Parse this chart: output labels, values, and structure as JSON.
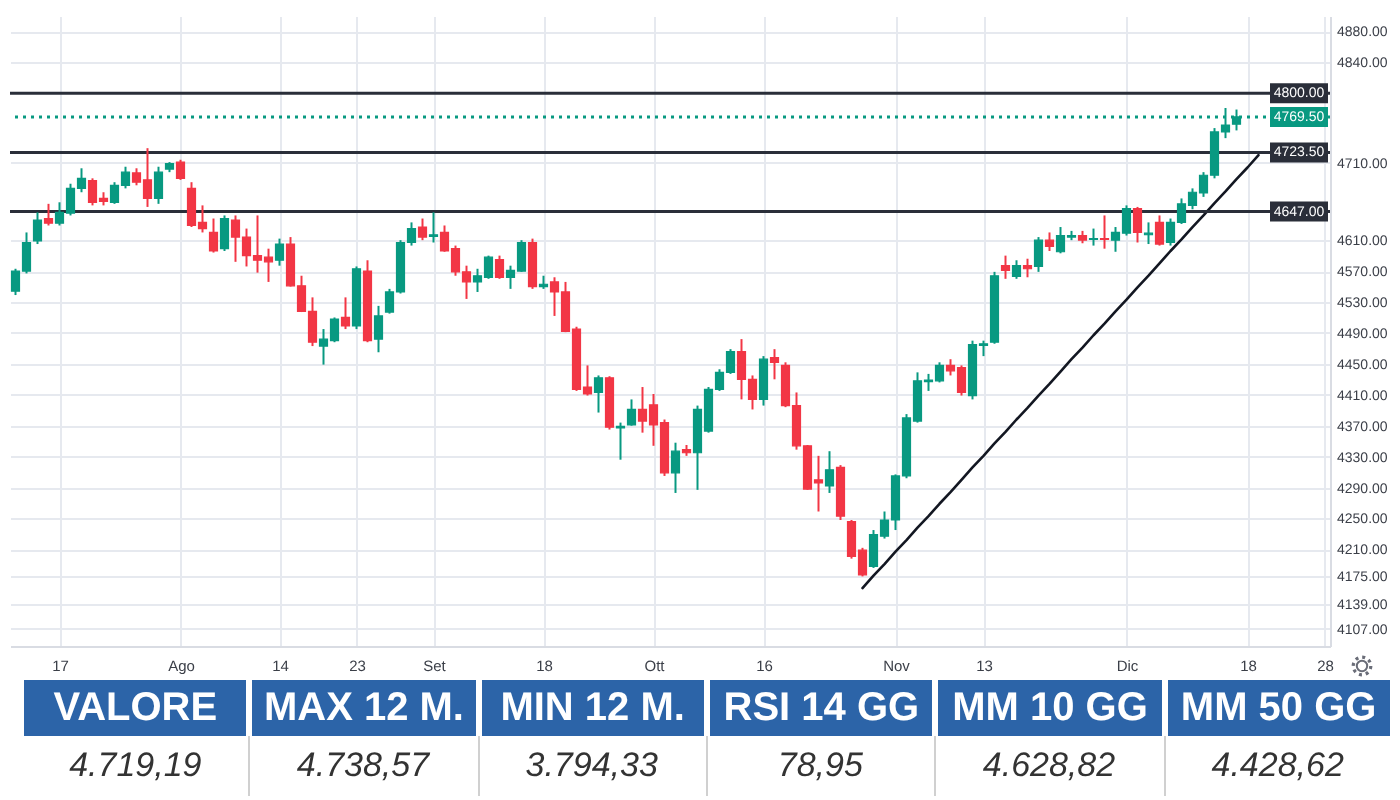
{
  "chart_data": [
    {
      "type": "candlestick",
      "categories": [
        null,
        null,
        null,
        null,
        "17",
        null,
        null,
        null,
        null,
        null,
        null,
        null,
        null,
        null,
        null,
        "Ago",
        null,
        null,
        null,
        null,
        null,
        null,
        null,
        null,
        "14",
        null,
        null,
        null,
        null,
        null,
        null,
        "23",
        null,
        null,
        null,
        null,
        null,
        null,
        "Set",
        null,
        null,
        null,
        null,
        null,
        null,
        null,
        null,
        null,
        "18",
        null,
        null,
        null,
        null,
        null,
        null,
        null,
        null,
        null,
        "Ott",
        null,
        null,
        null,
        null,
        null,
        null,
        null,
        null,
        null,
        "16",
        null,
        null,
        null,
        null,
        null,
        null,
        null,
        null,
        null,
        null,
        null,
        "Nov",
        null,
        null,
        null,
        null,
        null,
        null,
        null,
        "13",
        null,
        null,
        null,
        null,
        null,
        null,
        null,
        null,
        null,
        null,
        null,
        null,
        "Dic",
        null,
        null,
        null,
        null,
        null,
        null,
        null,
        null,
        null,
        null,
        "18",
        null,
        null,
        null,
        null,
        null,
        null,
        "28"
      ],
      "ohlc": [
        [
          4544,
          4573,
          4539,
          4570
        ],
        [
          4570,
          4620,
          4567,
          4607
        ],
        [
          4609,
          4646,
          4605,
          4636
        ],
        [
          4638,
          4657,
          4629,
          4632
        ],
        [
          4632,
          4659,
          4629,
          4646
        ],
        [
          4645,
          4683,
          4642,
          4677
        ],
        [
          4677,
          4703,
          4672,
          4690
        ],
        [
          4687,
          4690,
          4655,
          4659
        ],
        [
          4664,
          4672,
          4655,
          4660
        ],
        [
          4659,
          4685,
          4657,
          4681
        ],
        [
          4681,
          4705,
          4677,
          4698
        ],
        [
          4697,
          4703,
          4681,
          4685
        ],
        [
          4688,
          4729,
          4653,
          4664
        ],
        [
          4664,
          4705,
          4657,
          4698
        ],
        [
          4702,
          4711,
          4698,
          4709
        ],
        [
          4711,
          4714,
          4688,
          4690
        ],
        [
          4677,
          4685,
          4627,
          4629
        ],
        [
          4633,
          4655,
          4620,
          4625
        ],
        [
          4620,
          4638,
          4594,
          4596
        ],
        [
          4599,
          4642,
          4596,
          4638
        ],
        [
          4636,
          4642,
          4582,
          4614
        ],
        [
          4614,
          4625,
          4576,
          4590
        ],
        [
          4590,
          4642,
          4568,
          4584
        ],
        [
          4588,
          4599,
          4556,
          4582
        ],
        [
          4584,
          4612,
          4577,
          4605
        ],
        [
          4605,
          4614,
          4550,
          4551
        ],
        [
          4551,
          4564,
          4517,
          4518
        ],
        [
          4518,
          4536,
          4473,
          4478
        ],
        [
          4473,
          4495,
          4449,
          4482
        ],
        [
          4480,
          4510,
          4478,
          4508
        ],
        [
          4510,
          4536,
          4495,
          4499
        ],
        [
          4499,
          4576,
          4495,
          4573
        ],
        [
          4570,
          4584,
          4478,
          4480
        ],
        [
          4482,
          4525,
          4465,
          4512
        ],
        [
          4517,
          4547,
          4515,
          4543
        ],
        [
          4543,
          4610,
          4541,
          4607
        ],
        [
          4607,
          4633,
          4603,
          4625
        ],
        [
          4627,
          4638,
          4610,
          4614
        ],
        [
          4615,
          4646,
          4607,
          4617
        ],
        [
          4620,
          4629,
          4595,
          4596
        ],
        [
          4599,
          4603,
          4564,
          4569
        ],
        [
          4569,
          4577,
          4534,
          4556
        ],
        [
          4556,
          4573,
          4543,
          4564
        ],
        [
          4562,
          4590,
          4560,
          4588
        ],
        [
          4585,
          4590,
          4560,
          4562
        ],
        [
          4562,
          4577,
          4547,
          4571
        ],
        [
          4570,
          4610,
          4569,
          4607
        ],
        [
          4607,
          4612,
          4547,
          4550
        ],
        [
          4550,
          4564,
          4547,
          4553
        ],
        [
          4556,
          4562,
          4512,
          4543
        ],
        [
          4543,
          4556,
          4491,
          4492
        ],
        [
          4495,
          4498,
          4415,
          4417
        ],
        [
          4420,
          4448,
          4409,
          4411
        ],
        [
          4413,
          4435,
          4387,
          4432
        ],
        [
          4432,
          4434,
          4365,
          4368
        ],
        [
          4367,
          4374,
          4326,
          4369
        ],
        [
          4371,
          4404,
          4370,
          4391
        ],
        [
          4391,
          4420,
          4361,
          4376
        ],
        [
          4397,
          4411,
          4344,
          4371
        ],
        [
          4374,
          4378,
          4305,
          4309
        ],
        [
          4309,
          4348,
          4283,
          4337
        ],
        [
          4339,
          4345,
          4331,
          4335
        ],
        [
          4335,
          4396,
          4287,
          4391
        ],
        [
          4363,
          4420,
          4361,
          4417
        ],
        [
          4417,
          4443,
          4415,
          4439
        ],
        [
          4439,
          4469,
          4437,
          4466
        ],
        [
          4466,
          4482,
          4404,
          4430
        ],
        [
          4430,
          4435,
          4391,
          4404
        ],
        [
          4404,
          4460,
          4396,
          4456
        ],
        [
          4458,
          4469,
          4430,
          4452
        ],
        [
          4448,
          4452,
          4394,
          4396
        ],
        [
          4396,
          4413,
          4339,
          4344
        ],
        [
          4344,
          4345,
          4287,
          4288
        ],
        [
          4300,
          4331,
          4259,
          4296
        ],
        [
          4292,
          4337,
          4283,
          4313
        ],
        [
          4316,
          4319,
          4248,
          4253
        ],
        [
          4246,
          4248,
          4198,
          4201
        ],
        [
          4209,
          4212,
          4175,
          4177
        ],
        [
          4188,
          4235,
          4186,
          4229
        ],
        [
          4227,
          4259,
          4224,
          4248
        ],
        [
          4248,
          4307,
          4235,
          4305
        ],
        [
          4305,
          4385,
          4302,
          4380
        ],
        [
          4376,
          4439,
          4374,
          4428
        ],
        [
          4427,
          4437,
          4415,
          4429
        ],
        [
          4428,
          4452,
          4426,
          4448
        ],
        [
          4448,
          4456,
          4435,
          4441
        ],
        [
          4445,
          4448,
          4409,
          4413
        ],
        [
          4409,
          4480,
          4404,
          4475
        ],
        [
          4474,
          4480,
          4460,
          4476
        ],
        [
          4478,
          4569,
          4476,
          4564
        ],
        [
          4577,
          4590,
          4560,
          4571
        ],
        [
          4563,
          4584,
          4560,
          4577
        ],
        [
          4577,
          4586,
          4562,
          4573
        ],
        [
          4576,
          4614,
          4569,
          4610
        ],
        [
          4610,
          4620,
          4596,
          4602
        ],
        [
          4595,
          4627,
          4593,
          4616
        ],
        [
          4614,
          4622,
          4610,
          4616
        ],
        [
          4616,
          4622,
          4606,
          4610
        ],
        [
          4611,
          4625,
          4603,
          4612
        ],
        [
          4612,
          4642,
          4599,
          4611
        ],
        [
          4610,
          4627,
          4595,
          4620
        ],
        [
          4619,
          4655,
          4616,
          4651
        ],
        [
          4651,
          4653,
          4607,
          4620
        ],
        [
          4617,
          4633,
          4605,
          4619
        ],
        [
          4633,
          4642,
          4603,
          4605
        ],
        [
          4607,
          4638,
          4603,
          4633
        ],
        [
          4633,
          4664,
          4631,
          4657
        ],
        [
          4655,
          4677,
          4650,
          4672
        ],
        [
          4671,
          4698,
          4666,
          4694
        ],
        [
          4694,
          4755,
          4690,
          4750
        ],
        [
          4750,
          4781,
          4742,
          4759
        ],
        [
          4760,
          4779,
          4752,
          4769.5
        ],
        null,
        null,
        null,
        null,
        null,
        null,
        null,
        null
      ],
      "colors": [
        "#089981",
        "#089981",
        "#089981",
        "#f23645",
        "#089981",
        "#089981",
        "#089981",
        "#f23645",
        "#f23645",
        "#089981",
        "#089981",
        "#f23645",
        "#f23645",
        "#089981",
        "#089981",
        "#f23645",
        "#f23645",
        "#f23645",
        "#f23645",
        "#089981",
        "#f23645",
        "#f23645",
        "#f23645",
        "#f23645",
        "#089981",
        "#f23645",
        "#f23645",
        "#f23645",
        "#089981",
        "#089981",
        "#f23645",
        "#089981",
        "#f23645",
        "#089981",
        "#089981",
        "#089981",
        "#089981",
        "#f23645",
        "#089981",
        "#f23645",
        "#f23645",
        "#f23645",
        "#089981",
        "#089981",
        "#f23645",
        "#089981",
        "#089981",
        "#f23645",
        "#089981",
        "#f23645",
        "#f23645",
        "#f23645",
        "#f23645",
        "#089981",
        "#f23645",
        "#089981",
        "#089981",
        "#f23645",
        "#f23645",
        "#f23645",
        "#089981",
        "#f23645",
        "#089981",
        "#089981",
        "#089981",
        "#089981",
        "#f23645",
        "#f23645",
        "#089981",
        "#f23645",
        "#f23645",
        "#f23645",
        "#f23645",
        "#f23645",
        "#089981",
        "#f23645",
        "#f23645",
        "#f23645",
        "#089981",
        "#089981",
        "#089981",
        "#089981",
        "#089981",
        "#089981",
        "#089981",
        "#f23645",
        "#f23645",
        "#089981",
        "#089981",
        "#089981",
        "#f23645",
        "#089981",
        "#f23645",
        "#089981",
        "#f23645",
        "#089981",
        "#089981",
        "#f23645",
        "#089981",
        "#f23645",
        "#089981",
        "#089981",
        "#f23645",
        "#089981",
        "#f23645",
        "#089981",
        "#089981",
        "#089981",
        "#089981",
        "#089981",
        "#089981",
        "#089981",
        null,
        null,
        null,
        null,
        null,
        null,
        null,
        null
      ],
      "series": [
        {
          "type": "line",
          "color": "#131722",
          "values": [
            null,
            null,
            null,
            null,
            null,
            null,
            null,
            null,
            null,
            null,
            null,
            null,
            null,
            null,
            null,
            null,
            null,
            null,
            null,
            null,
            null,
            null,
            null,
            null,
            null,
            null,
            null,
            null,
            null,
            null,
            null,
            null,
            null,
            null,
            null,
            null,
            null,
            null,
            null,
            null,
            null,
            null,
            null,
            null,
            null,
            null,
            null,
            null,
            null,
            null,
            null,
            null,
            null,
            null,
            null,
            null,
            null,
            null,
            null,
            null,
            null,
            null,
            null,
            null,
            null,
            null,
            null,
            null,
            null,
            null,
            null,
            null,
            null,
            null,
            null,
            null,
            null,
            4160,
            4176,
            4191,
            4207,
            4222,
            4238,
            4253,
            4269,
            4284,
            4300,
            4316,
            4331,
            4347,
            4362,
            4378,
            4393,
            4409,
            4424,
            4440,
            4456,
            4471,
            4487,
            4502,
            4518,
            4533,
            4549,
            4564,
            4580,
            4596,
            4611,
            4627,
            4642,
            4658,
            4673,
            4689,
            4704,
            4720,
            null,
            null,
            null,
            null,
            null,
            null
          ]
        }
      ],
      "ylim": [
        4085,
        4900
      ],
      "yticks": [
        {
          "value": 4880,
          "label": "4880.00"
        },
        {
          "value": 4840,
          "label": "4840.00"
        },
        {
          "value": 4710,
          "label": "4710.00"
        },
        {
          "value": 4610,
          "label": "4610.00"
        },
        {
          "value": 4570,
          "label": "4570.00"
        },
        {
          "value": 4530,
          "label": "4530.00"
        },
        {
          "value": 4490,
          "label": "4490.00"
        },
        {
          "value": 4450,
          "label": "4450.00"
        },
        {
          "value": 4410,
          "label": "4410.00"
        },
        {
          "value": 4370,
          "label": "4370.00"
        },
        {
          "value": 4330,
          "label": "4330.00"
        },
        {
          "value": 4290,
          "label": "4290.00"
        },
        {
          "value": 4250,
          "label": "4250.00"
        },
        {
          "value": 4210,
          "label": "4210.00"
        },
        {
          "value": 4175,
          "label": "4175.00"
        },
        {
          "value": 4139,
          "label": "4139.00"
        },
        {
          "value": 4107,
          "label": "4107.00"
        }
      ],
      "ref_lines": [
        {
          "axis": "y",
          "value": 4800,
          "label": "4800.00",
          "color": "#2a2e39"
        },
        {
          "axis": "y",
          "value": 4769.5,
          "label": "4769.50",
          "color": "#089981",
          "line_style": "dotted"
        },
        {
          "axis": "y",
          "value": 4723.5,
          "label": "4723.50",
          "color": "#2a2e39"
        },
        {
          "axis": "y",
          "value": 4647,
          "label": "4647.00",
          "color": "#2a2e39"
        }
      ],
      "grid": true
    },
    {
      "type": "other",
      "categories": [
        "VALORE",
        "MAX 12 M.",
        "MIN 12 M.",
        "RSI 14 GG",
        "MM 10 GG",
        "MM 50 GG"
      ],
      "value_labels": [
        "4.719,19",
        "4.738,57",
        "3.794,33",
        "78,95",
        "4.628,82",
        "4.428,62"
      ]
    }
  ]
}
